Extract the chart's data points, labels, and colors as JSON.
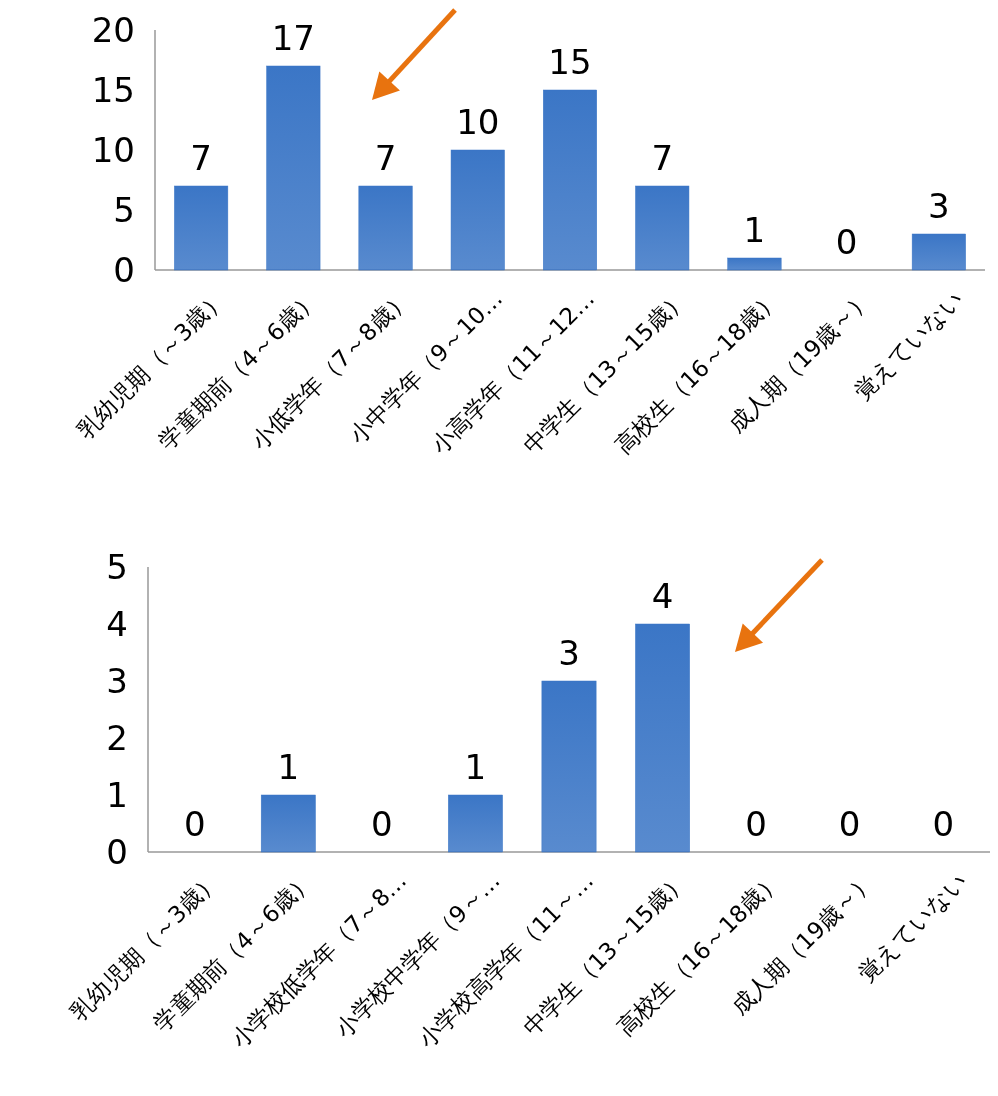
{
  "chart_data": [
    {
      "type": "bar",
      "categories": [
        "乳幼児期（～3歳）",
        "学童期前（4～6歳）",
        "小低学年（7～8歳）",
        "小中学年（9～10…",
        "小高学年（11～12…",
        "中学生（13～15歳）",
        "高校生（16～18歳）",
        "成人期（19歳～）",
        "覚えていない"
      ],
      "values": [
        7,
        17,
        7,
        10,
        15,
        7,
        1,
        0,
        3
      ],
      "color": "#3b76c6",
      "ylim": [
        0,
        20
      ],
      "yticks": [
        0,
        5,
        10,
        15,
        20
      ],
      "data_labels": true
    },
    {
      "type": "bar",
      "categories": [
        "乳幼児期（～3歳）",
        "学童期前（4～6歳）",
        "小学校低学年（7～8…",
        "小学校中学年（9～…",
        "小学校高学年（11～…",
        "中学生（13～15歳）",
        "高校生（16～18歳）",
        "成人期（19歳～）",
        "覚えていない"
      ],
      "values": [
        0,
        1,
        0,
        1,
        3,
        4,
        0,
        0,
        0
      ],
      "color": "#3b76c6",
      "ylim": [
        0,
        5
      ],
      "yticks": [
        0,
        1,
        2,
        3,
        4,
        5
      ],
      "data_labels": true
    }
  ]
}
